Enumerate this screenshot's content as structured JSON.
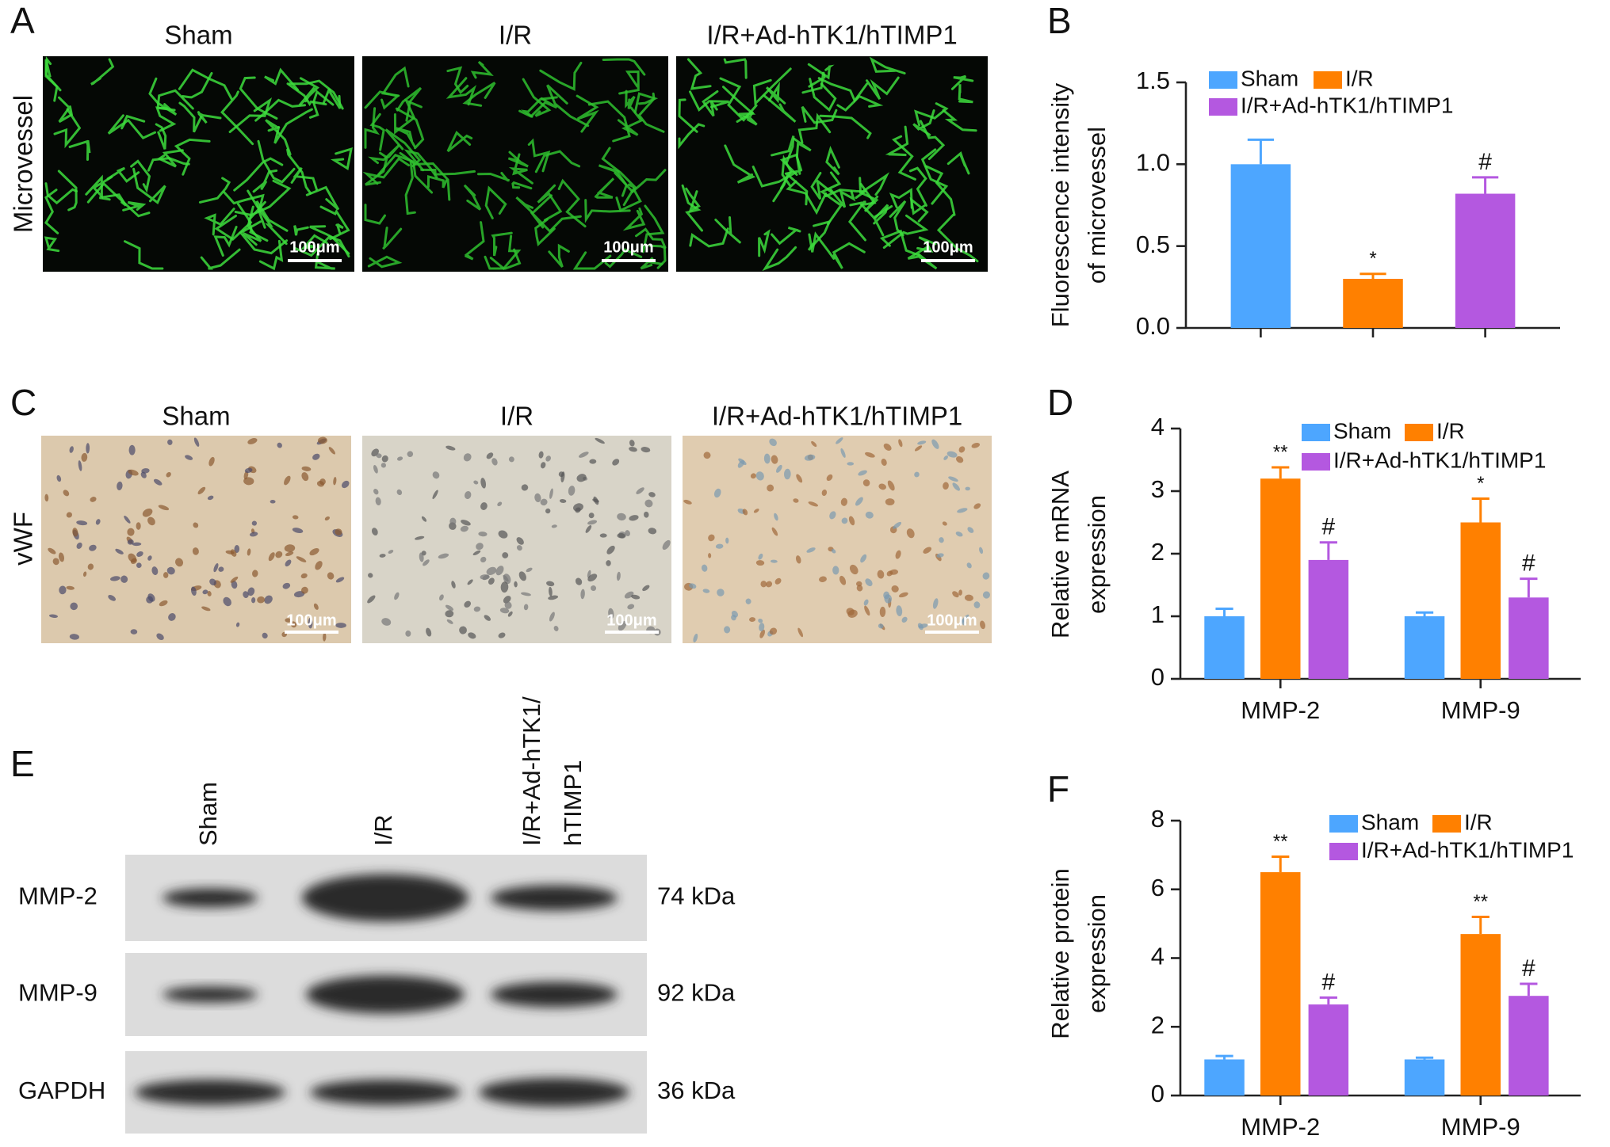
{
  "panel_labels": [
    "A",
    "B",
    "C",
    "D",
    "E",
    "F"
  ],
  "panel_a": {
    "columns": [
      "Sham",
      "I/R",
      "I/R+Ad-hTK1/hTIMP1"
    ],
    "row_label": "Microvessel",
    "scale_bar": "100μm"
  },
  "panel_c": {
    "columns": [
      "Sham",
      "I/R",
      "I/R+Ad-hTK1/hTIMP1"
    ],
    "row_label": "vWF",
    "scale_bar": "100μm"
  },
  "panel_e": {
    "lanes": [
      [
        "Sham"
      ],
      [
        "I/R"
      ],
      [
        "I/R+Ad-hTK1/",
        "hTIMP1"
      ]
    ],
    "rows": [
      {
        "protein": "MMP-2",
        "size": "74 kDa"
      },
      {
        "protein": "MMP-9",
        "size": "92 kDa"
      },
      {
        "protein": "GAPDH",
        "size": "36 kDa"
      }
    ]
  },
  "chart_data": [
    {
      "type": "bar",
      "ylabel": [
        "Fluorescence intensity",
        "of microvessel"
      ],
      "categories": [
        null
      ],
      "series": [
        {
          "name": "Sham",
          "color": "#4da6ff",
          "values": [
            1.0
          ],
          "errors": [
            0.15
          ],
          "annotations": [
            null
          ]
        },
        {
          "name": "I/R",
          "color": "#ff8000",
          "values": [
            0.3
          ],
          "errors": [
            0.03
          ],
          "annotations": [
            "*"
          ]
        },
        {
          "name": "I/R+Ad-hTK1/hTIMP1",
          "color": "#b458e0",
          "values": [
            0.82
          ],
          "errors": [
            0.1
          ],
          "annotations": [
            "#"
          ]
        }
      ],
      "ylim": [
        0,
        1.5
      ],
      "yticks": [
        {
          "value": 0,
          "label": "0.0"
        },
        {
          "value": 0.5,
          "label": "0.5"
        },
        {
          "value": 1,
          "label": "1.0"
        },
        {
          "value": 1.5,
          "label": "1.5"
        }
      ]
    },
    {
      "type": "bar",
      "ylabel": [
        "Relative mRNA",
        "expression"
      ],
      "categories": [
        "MMP-2",
        "MMP-9"
      ],
      "series": [
        {
          "name": "Sham",
          "color": "#4da6ff",
          "values": [
            1.0,
            1.0
          ],
          "errors": [
            0.12,
            0.06
          ],
          "annotations": [
            null,
            null
          ]
        },
        {
          "name": "I/R",
          "color": "#ff8000",
          "values": [
            3.2,
            2.5
          ],
          "errors": [
            0.18,
            0.38
          ],
          "annotations": [
            "**",
            "*"
          ]
        },
        {
          "name": "I/R+Ad-hTK1/hTIMP1",
          "color": "#b458e0",
          "values": [
            1.9,
            1.3
          ],
          "errors": [
            0.28,
            0.3
          ],
          "annotations": [
            "#",
            "#"
          ]
        }
      ],
      "ylim": [
        0,
        4
      ],
      "yticks": [
        0,
        1,
        2,
        3,
        4
      ]
    },
    {
      "type": "bar",
      "ylabel": [
        "Relative protein",
        "expression"
      ],
      "categories": [
        "MMP-2",
        "MMP-9"
      ],
      "series": [
        {
          "name": "Sham",
          "color": "#4da6ff",
          "values": [
            1.05,
            1.05
          ],
          "errors": [
            0.1,
            0.05
          ],
          "annotations": [
            null,
            null
          ]
        },
        {
          "name": "I/R",
          "color": "#ff8000",
          "values": [
            6.5,
            4.7
          ],
          "errors": [
            0.45,
            0.5
          ],
          "annotations": [
            "**",
            "**"
          ]
        },
        {
          "name": "I/R+Ad-hTK1/hTIMP1",
          "color": "#b458e0",
          "values": [
            2.65,
            2.9
          ],
          "errors": [
            0.2,
            0.35
          ],
          "annotations": [
            "#",
            "#"
          ]
        }
      ],
      "ylim": [
        0,
        8
      ],
      "yticks": [
        0,
        2,
        4,
        6,
        8
      ]
    }
  ]
}
